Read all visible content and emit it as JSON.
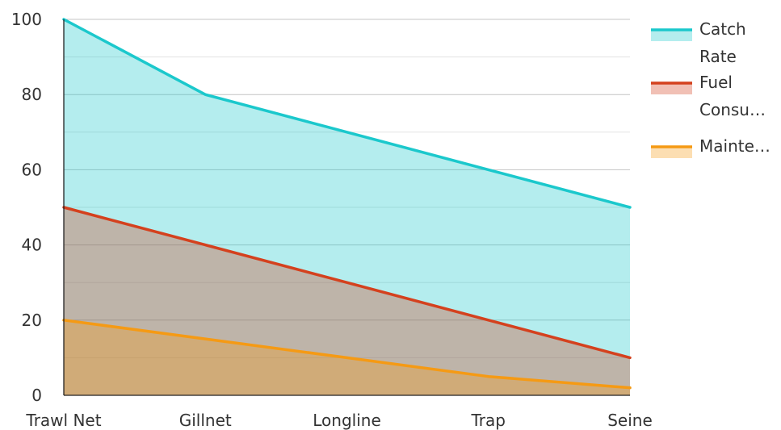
{
  "chart_data": {
    "type": "area",
    "categories": [
      "Trawl Net",
      "Gillnet",
      "Longline",
      "Trap",
      "Seine"
    ],
    "series": [
      {
        "name": "Catch Rate",
        "legend_lines": [
          "Catch",
          "Rate"
        ],
        "values": [
          100,
          80,
          70,
          60,
          50
        ],
        "color": "#1bc8cc",
        "fill": "#b2eeee"
      },
      {
        "name": "Fuel Consu…",
        "legend_lines": [
          "Fuel",
          "Consu…"
        ],
        "values": [
          50,
          40,
          30,
          20,
          10
        ],
        "color": "#d4411e",
        "fill": "#f0b9ad"
      },
      {
        "name": "Mainte…",
        "legend_lines": [
          "Mainte…"
        ],
        "values": [
          20,
          15,
          10,
          5,
          2
        ],
        "color": "#f59a14",
        "fill": "#fbdcaa"
      }
    ],
    "ylim": [
      0,
      100
    ],
    "yticks": [
      0,
      20,
      40,
      60,
      80,
      100
    ],
    "grid": true,
    "legend": "top-right",
    "xlabel": "",
    "ylabel": "",
    "title": ""
  }
}
